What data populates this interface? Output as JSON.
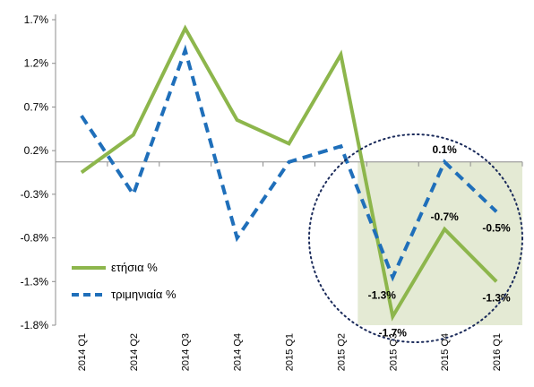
{
  "chart_data": {
    "type": "line",
    "categories": [
      "2014 Q1",
      "2014 Q2",
      "2014 Q3",
      "2014 Q4",
      "2015 Q1",
      "2015 Q2",
      "2015 Q3",
      "2015 Q4",
      "2016 Q1"
    ],
    "ylim": [
      -1.8,
      1.7
    ],
    "y_ticks": [
      -1.8,
      -1.3,
      -0.8,
      -0.3,
      0.2,
      0.7,
      1.2,
      1.7
    ],
    "y_tick_labels": [
      "-1.8%",
      "-1.3%",
      "-0.8%",
      "-0.3%",
      "0.2%",
      "0.7%",
      "1.2%",
      "1.7%"
    ],
    "series": [
      {
        "name": "ετήσια %",
        "color": "#8db64c",
        "dash": "solid",
        "values": [
          -0.05,
          0.38,
          1.6,
          0.55,
          0.28,
          1.3,
          -1.7,
          -0.7,
          -1.3
        ]
      },
      {
        "name": "τριμηνιαία %",
        "color": "#1f6fba",
        "dash": "dashed",
        "values": [
          0.6,
          -0.3,
          1.35,
          -0.8,
          0.07,
          0.25,
          -1.25,
          0.07,
          -0.5
        ]
      }
    ],
    "annotations": [
      {
        "text": "0.1%",
        "series": 1,
        "index": 7,
        "pos": "above"
      },
      {
        "text": "-0.7%",
        "series": 0,
        "index": 7,
        "pos": "above"
      },
      {
        "text": "-0.5%",
        "series": 1,
        "index": 8,
        "pos": "below"
      },
      {
        "text": "-1.3%",
        "series": 1,
        "index": 6,
        "pos": "below-left"
      },
      {
        "text": "-1.7%",
        "series": 0,
        "index": 6,
        "pos": "below"
      },
      {
        "text": "-1.3%",
        "series": 0,
        "index": 8,
        "pos": "below"
      }
    ],
    "highlight": {
      "from_index": 6,
      "to_index": 8,
      "color": "#e4ead4"
    },
    "legend_position": "bottom-left",
    "grid": false
  }
}
